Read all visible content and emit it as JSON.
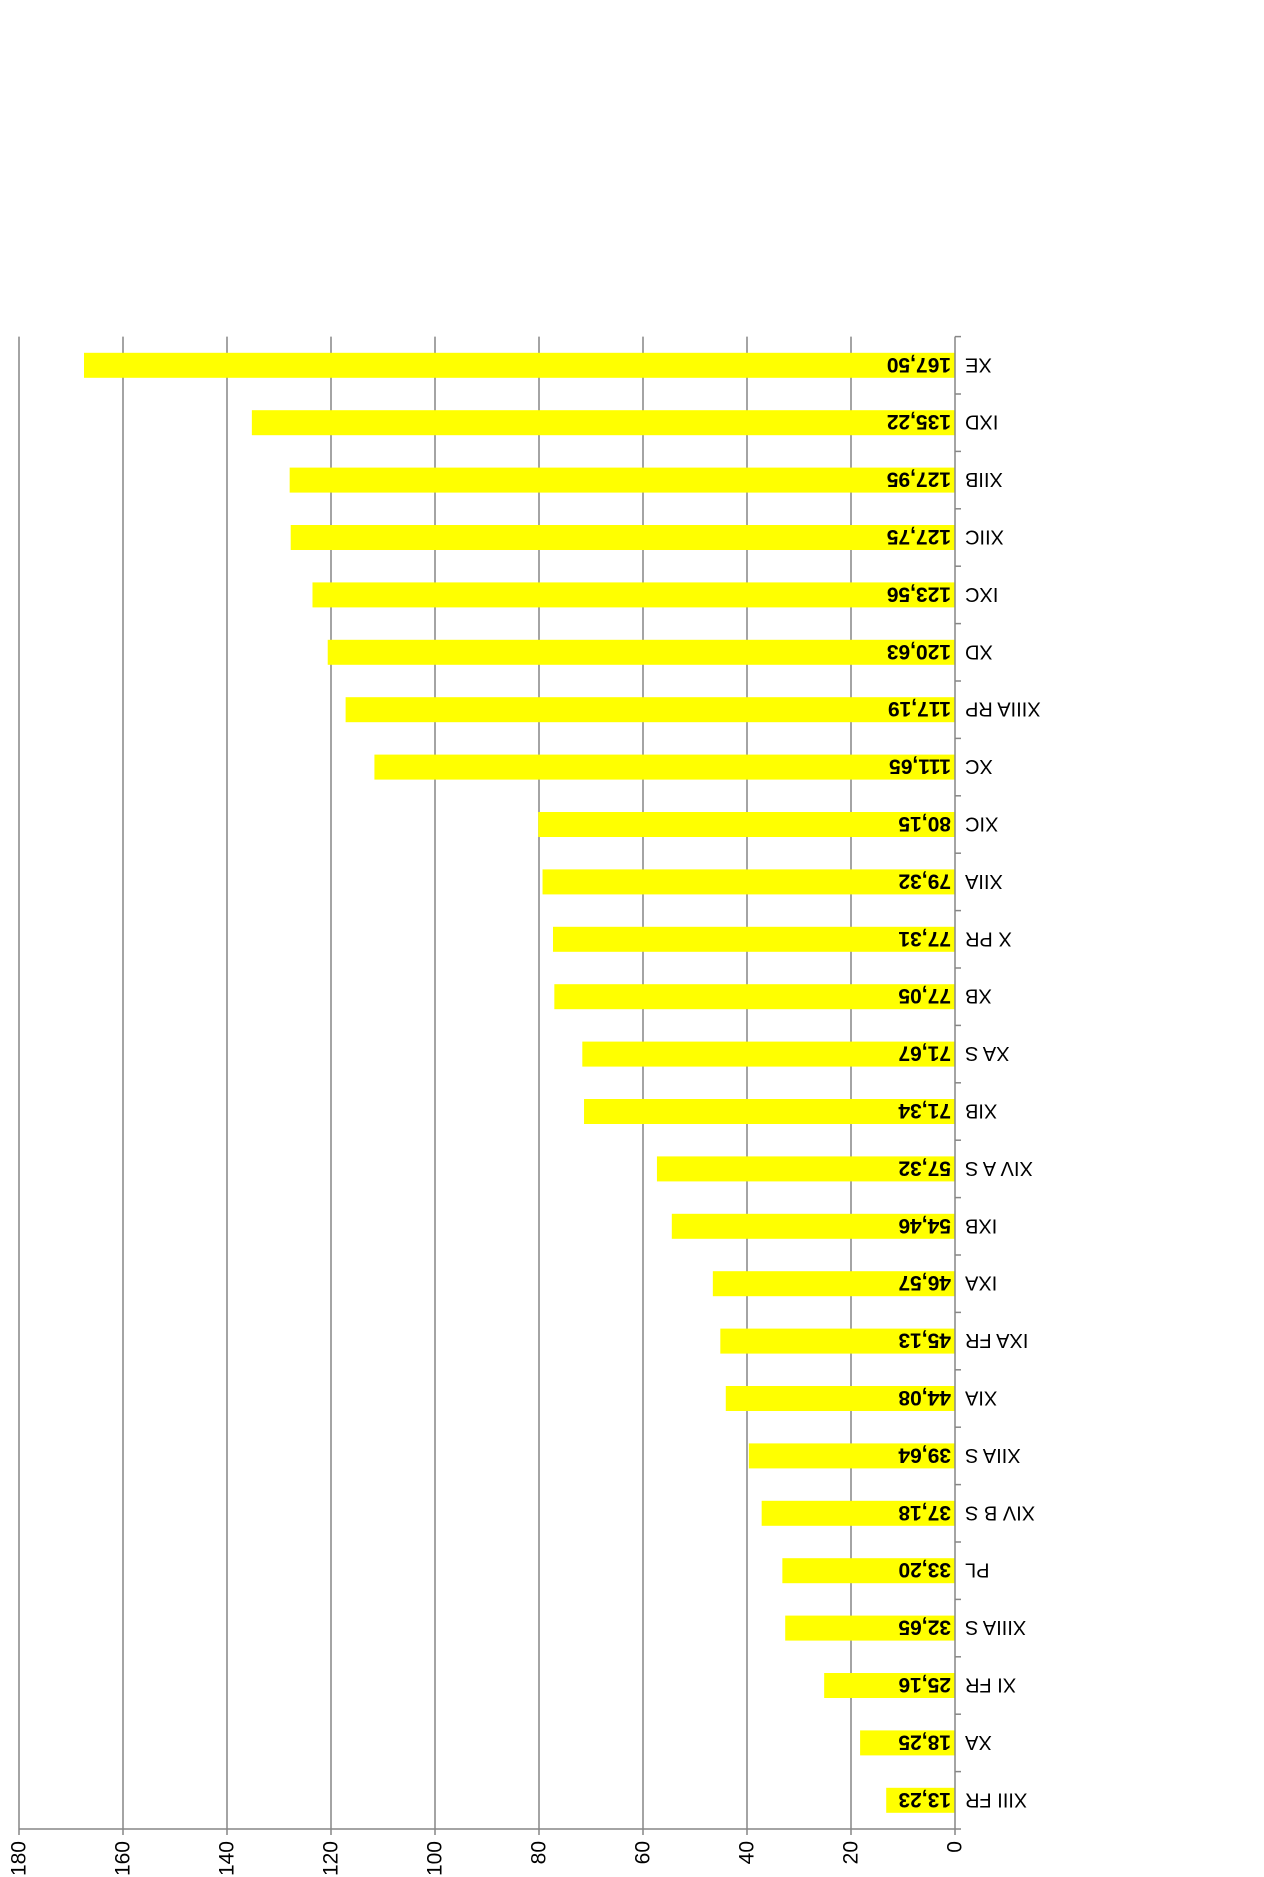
{
  "chart_data": {
    "type": "bar",
    "orientation": "horizontal",
    "rotated_180": true,
    "bar_color": "#FFFF00",
    "grid": true,
    "xlim": [
      0,
      180
    ],
    "ticks": [
      "0",
      "20",
      "40",
      "60",
      "80",
      "100",
      "120",
      "140",
      "160",
      "180"
    ],
    "tick_values": [
      0,
      20,
      40,
      60,
      80,
      100,
      120,
      140,
      160,
      180
    ],
    "categories": [
      "XIII FR",
      "XA",
      "XI FR",
      "XIIIA S",
      "PL",
      "XIV B S",
      "XIIA S",
      "XIA",
      "IXA FR",
      "IXA",
      "IXB",
      "XIV A S",
      "XIB",
      "XA S",
      "XB",
      "X PR",
      "XIIA",
      "XIC",
      "XC",
      "XIIIA RP",
      "XD",
      "IXC",
      "XIIC",
      "XIIB",
      "IXD",
      "XE"
    ],
    "values": [
      13.23,
      18.25,
      25.16,
      32.65,
      33.2,
      37.18,
      39.64,
      44.08,
      45.13,
      46.57,
      54.46,
      57.32,
      71.34,
      71.67,
      77.05,
      77.31,
      79.32,
      80.15,
      111.65,
      117.19,
      120.63,
      123.56,
      127.75,
      127.95,
      135.22,
      167.5
    ],
    "value_labels": [
      "13,23",
      "18,25",
      "25,16",
      "32,65",
      "33,20",
      "37,18",
      "39,64",
      "44,08",
      "45,13",
      "46,57",
      "54,46",
      "57,32",
      "71,34",
      "71,67",
      "77,05",
      "77,31",
      "79,32",
      "80,15",
      "111,65",
      "117,19",
      "120,63",
      "123,56",
      "127,75",
      "127,95",
      "135,22",
      "167,50"
    ]
  }
}
